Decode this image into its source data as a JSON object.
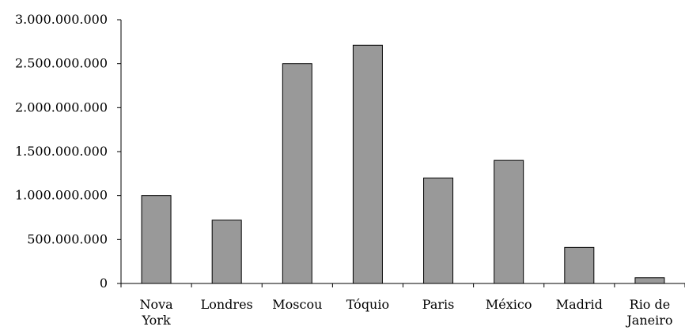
{
  "chart_data": {
    "type": "bar",
    "categories": [
      [
        "Nova",
        "York"
      ],
      [
        "Londres"
      ],
      [
        "Moscou"
      ],
      [
        "Tóquio"
      ],
      [
        "Paris"
      ],
      [
        "México"
      ],
      [
        "Madrid"
      ],
      [
        "Rio de",
        "Janeiro"
      ]
    ],
    "values": [
      1000000000,
      720000000,
      2500000000,
      2710000000,
      1200000000,
      1400000000,
      410000000,
      65000000
    ],
    "ylim": [
      0,
      3000000000
    ],
    "ytick_labels": [
      "0",
      "500.000.000",
      "1.000.000.000",
      "1.500.000.000",
      "2.000.000.000",
      "2.500.000.000",
      "3.000.000.000"
    ],
    "title": "",
    "xlabel": "",
    "ylabel": "",
    "grid": false,
    "legend": "none",
    "colors": {
      "bar_fill": "#999999",
      "bar_stroke": "#000000",
      "axis": "#000000"
    }
  }
}
